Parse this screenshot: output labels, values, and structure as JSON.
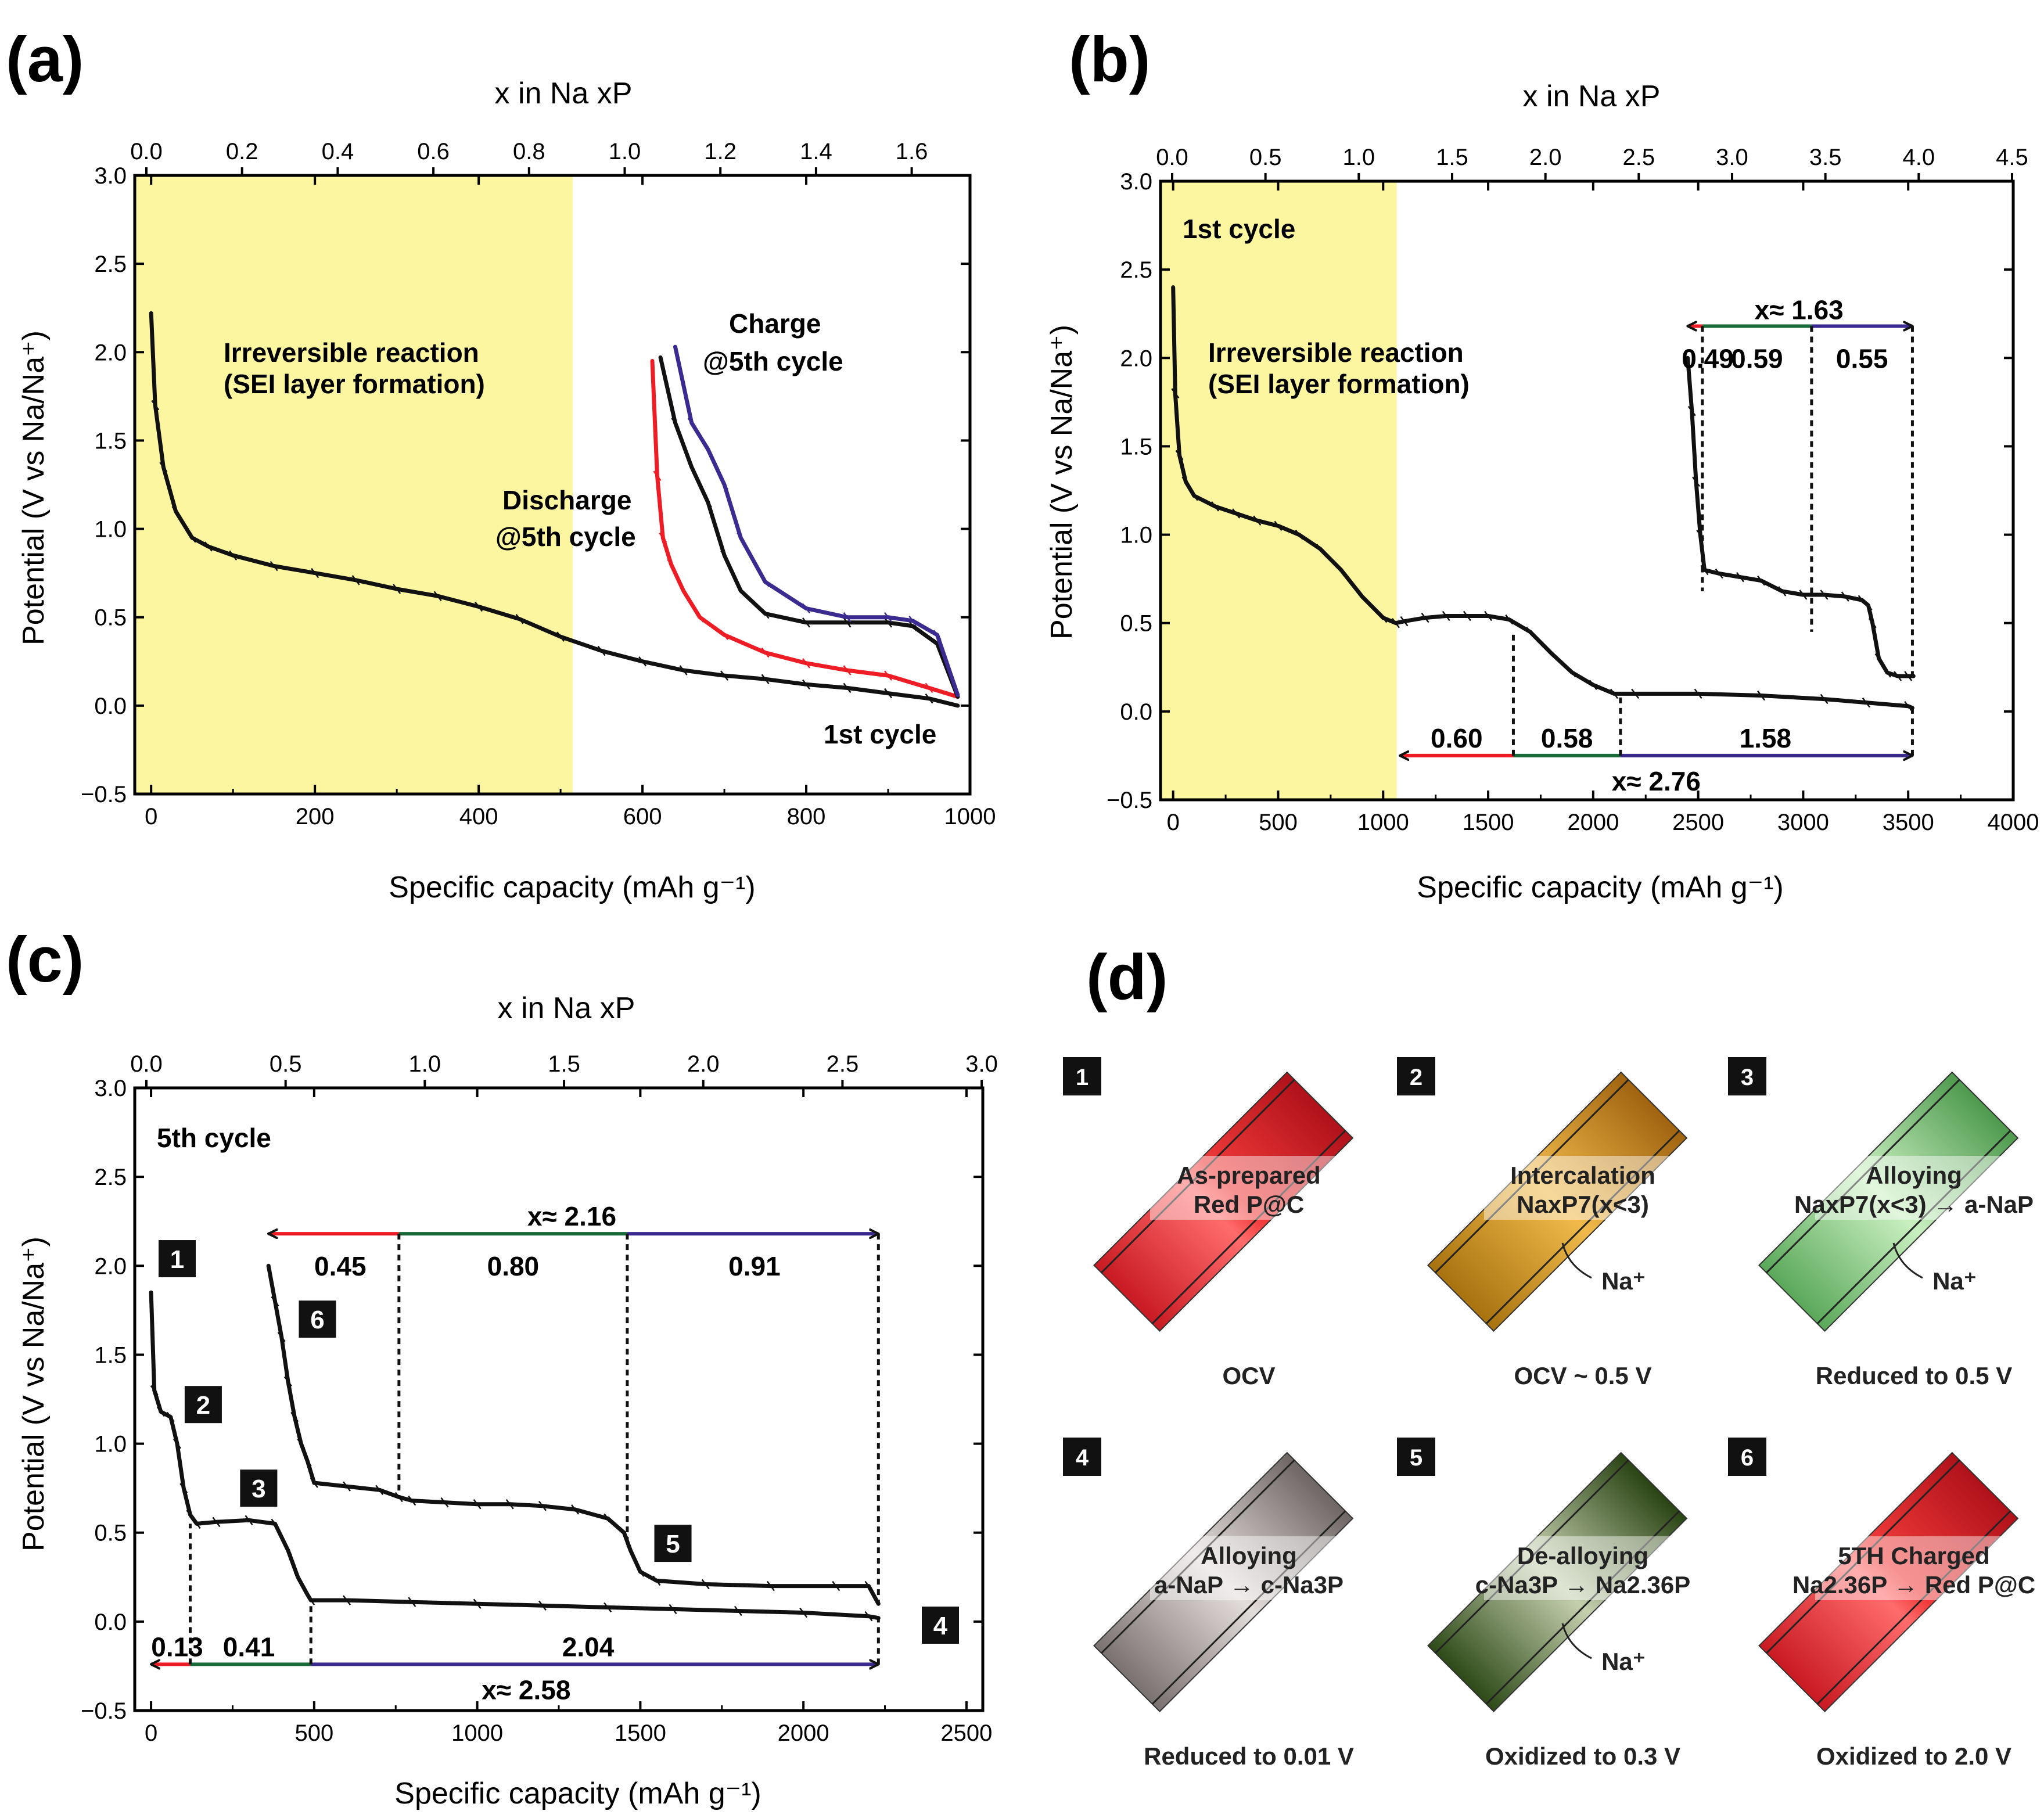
{
  "panel_labels": {
    "a": "(a)",
    "b": "(b)",
    "c": "(c)",
    "d": "(d)"
  },
  "colors": {
    "red": "#ee1c24",
    "green": "#1a6b3a",
    "blue": "#3b2a90",
    "black": "#111111",
    "sei": "#fdf6a0"
  },
  "chart_data": [
    {
      "id": "a",
      "type": "line",
      "title": "",
      "top_axis_label": "x in Na xP",
      "top_ticks": [
        "0.0",
        "0.2",
        "0.4",
        "0.6",
        "0.8",
        "1.0",
        "1.2",
        "1.4",
        "1.6"
      ],
      "top_range": [
        0.0,
        1.72
      ],
      "xlabel": "Specific capacity (mAh g⁻¹)",
      "ylabel": "Potential (V vs Na/Na⁺)",
      "xlim": [
        -20,
        1000
      ],
      "ylim": [
        -0.5,
        3.0
      ],
      "xticks": [
        0,
        200,
        400,
        600,
        800,
        1000
      ],
      "yticks": [
        -0.5,
        0.0,
        0.5,
        1.0,
        1.5,
        2.0,
        2.5,
        3.0
      ],
      "shaded_region": {
        "x_from": -20,
        "x_to": 515,
        "label": [
          "Irreversible reaction",
          "(SEI layer formation)"
        ]
      },
      "series": [
        {
          "name": "1st cycle",
          "color": "#111111",
          "x": [
            0,
            5,
            15,
            30,
            50,
            70,
            100,
            150,
            200,
            250,
            300,
            350,
            400,
            450,
            500,
            550,
            600,
            650,
            700,
            750,
            800,
            850,
            900,
            950,
            985
          ],
          "y": [
            2.22,
            1.7,
            1.35,
            1.1,
            0.95,
            0.9,
            0.85,
            0.79,
            0.75,
            0.71,
            0.66,
            0.62,
            0.56,
            0.49,
            0.39,
            0.31,
            0.25,
            0.2,
            0.17,
            0.15,
            0.12,
            0.1,
            0.07,
            0.04,
            0.0
          ]
        },
        {
          "name": "Discharge @5th cycle",
          "color": "#ee1c24",
          "x": [
            612,
            618,
            625,
            635,
            650,
            670,
            700,
            750,
            800,
            850,
            900,
            950,
            985
          ],
          "y": [
            1.95,
            1.3,
            0.95,
            0.8,
            0.65,
            0.5,
            0.4,
            0.3,
            0.24,
            0.2,
            0.17,
            0.1,
            0.05
          ]
        },
        {
          "name": "Charge (black)",
          "color": "#111111",
          "x": [
            622,
            640,
            660,
            680,
            700,
            720,
            750,
            800,
            850,
            900,
            930,
            960,
            985
          ],
          "y": [
            1.97,
            1.6,
            1.35,
            1.15,
            0.85,
            0.65,
            0.52,
            0.47,
            0.47,
            0.47,
            0.45,
            0.35,
            0.05
          ]
        },
        {
          "name": "Charge @5th cycle",
          "color": "#3b2a90",
          "x": [
            640,
            660,
            680,
            700,
            720,
            750,
            800,
            850,
            900,
            930,
            960,
            985
          ],
          "y": [
            2.03,
            1.6,
            1.45,
            1.25,
            0.95,
            0.7,
            0.55,
            0.5,
            0.5,
            0.48,
            0.4,
            0.06
          ]
        }
      ],
      "annotations": [
        {
          "text": "Charge",
          "color": "#3b2a90"
        },
        {
          "text": "@5th cycle",
          "color": "#3b2a90"
        },
        {
          "text": "Discharge",
          "color": "#ee1c24"
        },
        {
          "text": "@5th cycle",
          "color": "#ee1c24"
        },
        {
          "text": "1st cycle",
          "color": "#000000"
        }
      ]
    },
    {
      "id": "b",
      "type": "line",
      "title": "",
      "top_axis_label": "x in Na xP",
      "top_ticks": [
        "0.0",
        "0.5",
        "1.0",
        "1.5",
        "2.0",
        "2.5",
        "3.0",
        "3.5",
        "4.0",
        "4.5"
      ],
      "top_range": [
        0.0,
        4.5
      ],
      "xlabel": "Specific capacity (mAh g⁻¹)",
      "ylabel": "Potential (V vs Na/Na⁺)",
      "xlim": [
        -60,
        4000
      ],
      "ylim": [
        -0.5,
        3.0
      ],
      "xticks": [
        0,
        500,
        1000,
        1500,
        2000,
        2500,
        3000,
        3500,
        4000
      ],
      "yticks": [
        -0.5,
        0.0,
        0.5,
        1.0,
        1.5,
        2.0,
        2.5,
        3.0
      ],
      "shaded_region": {
        "x_from": -60,
        "x_to": 1065,
        "label": [
          "Irreversible reaction",
          "(SEI layer formation)"
        ]
      },
      "corner_label": "1st cycle",
      "series": [
        {
          "name": "1st discharge",
          "color": "#111111",
          "x": [
            0,
            10,
            30,
            60,
            100,
            200,
            300,
            400,
            500,
            600,
            700,
            800,
            900,
            1000,
            1060,
            1100,
            1200,
            1300,
            1400,
            1500,
            1600,
            1700,
            1800,
            1900,
            2000,
            2100,
            2200,
            2500,
            2800,
            3100,
            3300,
            3500,
            3520
          ],
          "y": [
            2.4,
            1.8,
            1.45,
            1.3,
            1.22,
            1.16,
            1.12,
            1.08,
            1.05,
            1.0,
            0.92,
            0.8,
            0.65,
            0.53,
            0.5,
            0.51,
            0.53,
            0.54,
            0.54,
            0.54,
            0.52,
            0.45,
            0.33,
            0.22,
            0.15,
            0.1,
            0.1,
            0.1,
            0.09,
            0.07,
            0.05,
            0.03,
            0.02
          ]
        },
        {
          "name": "1st charge",
          "color": "#111111",
          "x": [
            2450,
            2470,
            2490,
            2510,
            2530,
            2600,
            2700,
            2800,
            2900,
            3000,
            3100,
            3200,
            3280,
            3310,
            3330,
            3360,
            3400,
            3450,
            3500,
            3525
          ],
          "y": [
            2.0,
            1.7,
            1.3,
            1.0,
            0.8,
            0.78,
            0.76,
            0.74,
            0.68,
            0.66,
            0.66,
            0.65,
            0.63,
            0.6,
            0.5,
            0.3,
            0.22,
            0.2,
            0.2,
            0.2
          ]
        }
      ],
      "annotations": [
        {
          "text": "x≈ 1.63"
        },
        {
          "text": "0.49"
        },
        {
          "text": "0.59"
        },
        {
          "text": "0.55"
        },
        {
          "text": "0.60"
        },
        {
          "text": "0.58"
        },
        {
          "text": "1.58"
        },
        {
          "text": "x≈ 2.76"
        }
      ]
    },
    {
      "id": "c",
      "type": "line",
      "title": "",
      "top_axis_label": "x in Na xP",
      "top_ticks": [
        "0.0",
        "0.5",
        "1.0",
        "1.5",
        "2.0",
        "2.5",
        "3.0"
      ],
      "top_range": [
        0.0,
        3.0
      ],
      "xlabel": "Specific capacity (mAh g⁻¹)",
      "ylabel": "Potential (V vs Na/Na⁺)",
      "xlim": [
        -50,
        2550
      ],
      "ylim": [
        -0.5,
        3.0
      ],
      "xticks": [
        0,
        500,
        1000,
        1500,
        2000,
        2500
      ],
      "yticks": [
        -0.5,
        0.0,
        0.5,
        1.0,
        1.5,
        2.0,
        2.5,
        3.0
      ],
      "corner_label": "5th cycle",
      "series": [
        {
          "name": "5th discharge",
          "color": "#111111",
          "x": [
            0,
            10,
            30,
            60,
            80,
            100,
            120,
            140,
            200,
            300,
            380,
            420,
            450,
            480,
            490,
            600,
            800,
            1000,
            1200,
            1400,
            1600,
            1800,
            2000,
            2200,
            2230
          ],
          "y": [
            1.85,
            1.3,
            1.18,
            1.15,
            1.0,
            0.75,
            0.6,
            0.55,
            0.56,
            0.57,
            0.55,
            0.4,
            0.25,
            0.15,
            0.12,
            0.12,
            0.11,
            0.1,
            0.09,
            0.08,
            0.07,
            0.06,
            0.05,
            0.03,
            0.02
          ]
        },
        {
          "name": "5th charge",
          "color": "#111111",
          "x": [
            360,
            380,
            400,
            420,
            440,
            460,
            480,
            500,
            600,
            700,
            760,
            800,
            900,
            1000,
            1100,
            1200,
            1300,
            1400,
            1450,
            1470,
            1500,
            1550,
            1700,
            1900,
            2100,
            2200,
            2230
          ],
          "y": [
            2.0,
            1.8,
            1.6,
            1.35,
            1.15,
            1.0,
            0.9,
            0.78,
            0.76,
            0.74,
            0.7,
            0.68,
            0.67,
            0.66,
            0.66,
            0.65,
            0.63,
            0.58,
            0.5,
            0.4,
            0.28,
            0.23,
            0.21,
            0.2,
            0.2,
            0.2,
            0.1
          ]
        }
      ],
      "annotations": [
        {
          "text": "x≈ 2.16"
        },
        {
          "text": "0.45"
        },
        {
          "text": "0.80"
        },
        {
          "text": "0.91"
        },
        {
          "text": "0.13"
        },
        {
          "text": "0.41"
        },
        {
          "text": "2.04"
        },
        {
          "text": "x≈ 2.58"
        }
      ],
      "markers": [
        "1",
        "2",
        "3",
        "4",
        "5",
        "6"
      ]
    }
  ],
  "schematic": {
    "cells": [
      {
        "num": "1",
        "line1": "As-prepared",
        "line2": "Red P@C",
        "ion": "",
        "state": "OCV"
      },
      {
        "num": "2",
        "line1": "Intercalation",
        "line2": "NaxP7(x<3)",
        "ion": "Na⁺",
        "state": "OCV ~ 0.5 V"
      },
      {
        "num": "3",
        "line1": "Alloying",
        "line2": "NaxP7(x<3) → a-NaP",
        "ion": "Na⁺",
        "state": "Reduced to 0.5 V"
      },
      {
        "num": "4",
        "line1": "Alloying",
        "line2": "a-NaP → c-Na3P",
        "ion": "",
        "state": "Reduced to 0.01 V"
      },
      {
        "num": "5",
        "line1": "De-alloying",
        "line2": "c-Na3P → Na2.36P",
        "ion": "Na⁺",
        "state": "Oxidized to 0.3 V"
      },
      {
        "num": "6",
        "line1": "5TH Charged",
        "line2": "Na2.36P → Red P@C",
        "ion": "",
        "state": "Oxidized to 2.0 V"
      }
    ]
  }
}
